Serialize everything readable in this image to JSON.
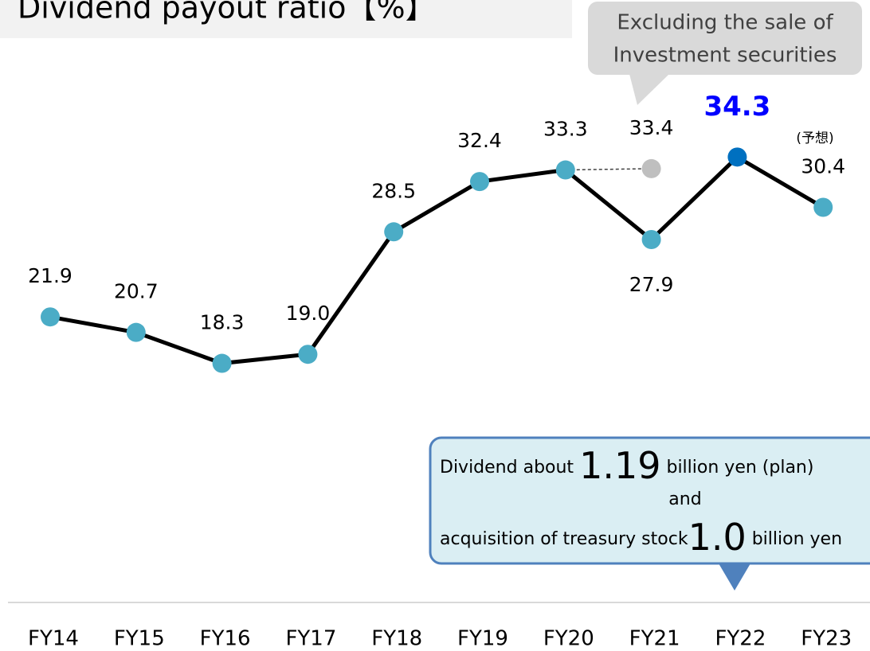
{
  "chart_data": {
    "type": "line",
    "title": "Dividend payout ratio【%】",
    "categories": [
      "FY14",
      "FY15",
      "FY16",
      "FY17",
      "FY18",
      "FY19",
      "FY20",
      "FY21",
      "FY22",
      "FY23"
    ],
    "series": [
      {
        "color": "#000000",
        "marker_color": "#4bacc6",
        "highlight_color": "#0070c0",
        "highlight_label_color": "#0000ff",
        "values": [
          21.9,
          20.7,
          18.3,
          19.0,
          28.5,
          32.4,
          33.3,
          27.9,
          34.3,
          30.4
        ],
        "value_labels": [
          "21.9",
          "20.7",
          "18.3",
          "19.0",
          "28.5",
          "32.4",
          "33.3",
          "27.9",
          "34.3",
          "30.4"
        ]
      },
      {
        "color": "#bfbfbf",
        "values": [
          null,
          null,
          null,
          null,
          null,
          null,
          null,
          33.4,
          null,
          null
        ],
        "value_labels": [
          null,
          null,
          null,
          null,
          null,
          null,
          null,
          "33.4",
          null,
          null
        ]
      }
    ],
    "ylim": [
      0,
      40
    ],
    "forecast_note": "(予想)",
    "callout_top": [
      "Excluding the sale of",
      "Investment securities"
    ],
    "callout_bottom": {
      "line1": [
        "Dividend about",
        "1.19",
        "billion yen (plan)"
      ],
      "line2": "and",
      "line3": [
        "acquisition of treasury stock",
        "1.0",
        "billion yen"
      ]
    }
  }
}
